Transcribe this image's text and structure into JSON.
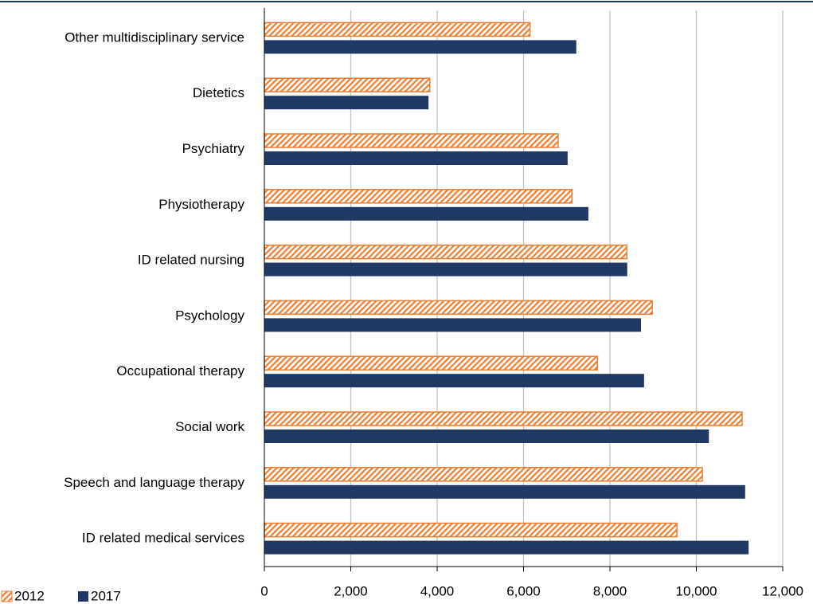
{
  "chart_data": {
    "type": "bar",
    "orientation": "horizontal",
    "categories": [
      "Other multidisciplinary service",
      "Dietetics",
      "Psychiatry",
      "Physiotherapy",
      "ID related nursing",
      "Psychology",
      "Occupational therapy",
      "Social work",
      "Speech and language therapy",
      "ID related medical services"
    ],
    "series": [
      {
        "name": "2012",
        "color": "#ed7d31",
        "pattern": "hatch",
        "values": [
          6150,
          3830,
          6800,
          7120,
          8390,
          8980,
          7710,
          11060,
          10140,
          9550
        ]
      },
      {
        "name": "2017",
        "color": "#203864",
        "pattern": "solid",
        "values": [
          7220,
          3800,
          7020,
          7500,
          8400,
          8720,
          8790,
          10290,
          11130,
          11210
        ]
      }
    ],
    "xlim": [
      0,
      12000
    ],
    "xticks": [
      0,
      {
        "value": 2000,
        "label": "2,000"
      },
      {
        "value": 4000,
        "label": "4,000"
      },
      {
        "value": 6000,
        "label": "6,000"
      },
      {
        "value": 8000,
        "label": "8,000"
      },
      {
        "value": 10000,
        "label": "10,000"
      },
      {
        "value": 12000,
        "label": "12,000"
      }
    ],
    "grid": true,
    "legend": "bottom-left"
  }
}
